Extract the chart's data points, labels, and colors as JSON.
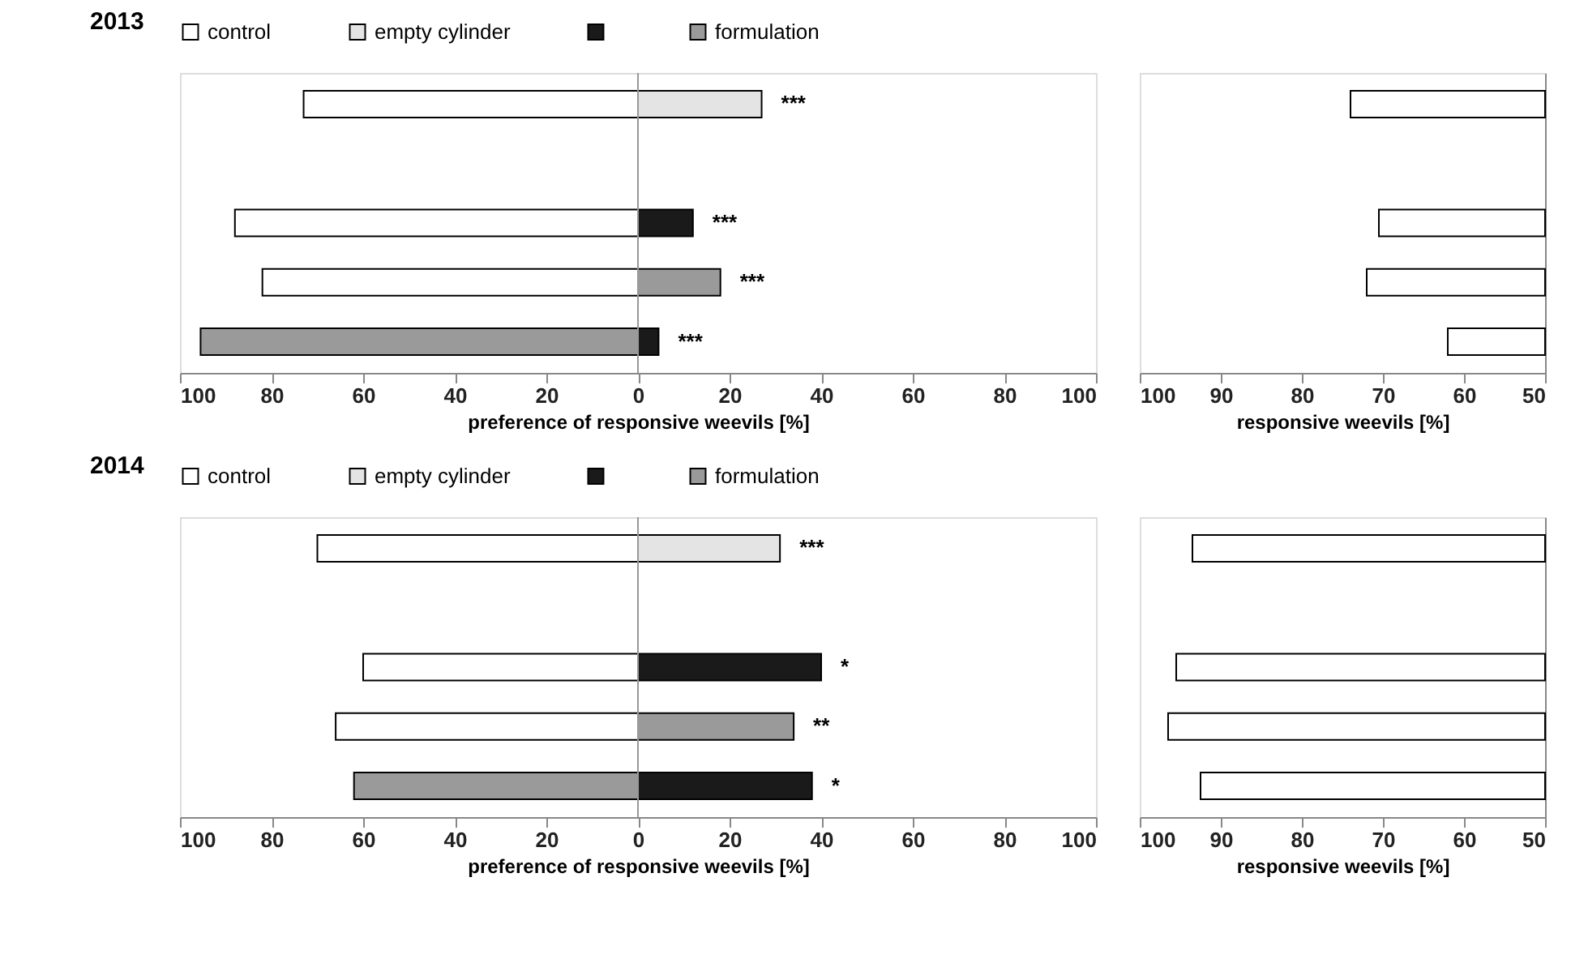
{
  "chart_data": [
    {
      "type": "bar",
      "orientation": "horizontal",
      "stacked": true,
      "title": "2013",
      "xlabel": "preference of responsive weevils [%]",
      "categories": [
        null,
        null,
        null,
        null,
        null
      ],
      "series": [
        {
          "name": "control",
          "color": "#ffffff",
          "values": [
            -73,
            null,
            -88,
            -82,
            null
          ]
        },
        {
          "name": "empty cylinder",
          "color": "#e4e4e4",
          "values": [
            27,
            null,
            null,
            null,
            null
          ]
        },
        {
          "color": "#1a1a1a",
          "values": [
            null,
            null,
            12,
            null,
            4.5
          ]
        },
        {
          "name": "formulation",
          "color": "#9a9a9a",
          "values": [
            null,
            null,
            null,
            18,
            -95.5
          ]
        }
      ],
      "xlim": [
        -100,
        100
      ],
      "xticks": [
        {
          "value": -100,
          "label": "100"
        },
        {
          "value": -80,
          "label": "80"
        },
        {
          "value": -60,
          "label": "60"
        },
        {
          "value": -40,
          "label": "40"
        },
        {
          "value": -20,
          "label": "20"
        },
        0,
        20,
        40,
        60,
        80,
        100
      ],
      "ref_lines": [
        {
          "axis": "x",
          "value": 0,
          "color": "#999999"
        }
      ],
      "annotations": [
        "***",
        "***",
        "***",
        "***"
      ],
      "legend": "top"
    },
    {
      "type": "bar",
      "orientation": "horizontal",
      "xlabel": "responsive weevils [%]",
      "categories": [
        null,
        null,
        null,
        null,
        null
      ],
      "series": [
        {
          "color": "#ffffff",
          "values": [
            74,
            null,
            70.5,
            72,
            62
          ]
        }
      ],
      "xlim": [
        100,
        50
      ],
      "xticks": [
        100,
        90,
        80,
        70,
        60,
        50
      ]
    },
    {
      "type": "bar",
      "orientation": "horizontal",
      "stacked": true,
      "title": "2014",
      "xlabel": "preference of responsive weevils [%]",
      "categories": [
        null,
        null,
        null,
        null,
        null
      ],
      "series": [
        {
          "name": "control",
          "color": "#ffffff",
          "values": [
            -70,
            null,
            -60,
            -66,
            null
          ]
        },
        {
          "name": "empty cylinder",
          "color": "#e4e4e4",
          "values": [
            31,
            null,
            null,
            null,
            null
          ]
        },
        {
          "color": "#1a1a1a",
          "values": [
            null,
            null,
            40,
            null,
            38
          ]
        },
        {
          "name": "formulation",
          "color": "#9a9a9a",
          "values": [
            null,
            null,
            null,
            34,
            -62
          ]
        }
      ],
      "xlim": [
        -100,
        100
      ],
      "xticks": [
        {
          "value": -100,
          "label": "100"
        },
        {
          "value": -80,
          "label": "80"
        },
        {
          "value": -60,
          "label": "60"
        },
        {
          "value": -40,
          "label": "40"
        },
        {
          "value": -20,
          "label": "20"
        },
        0,
        20,
        40,
        60,
        80,
        100
      ],
      "ref_lines": [
        {
          "axis": "x",
          "value": 0,
          "color": "#999999"
        }
      ],
      "annotations": [
        "***",
        "*",
        "**",
        "*"
      ],
      "legend": "top"
    },
    {
      "type": "bar",
      "orientation": "horizontal",
      "xlabel": "responsive weevils [%]",
      "categories": [
        null,
        null,
        null,
        null,
        null
      ],
      "series": [
        {
          "color": "#ffffff",
          "values": [
            93.5,
            null,
            95.5,
            96.5,
            92.5
          ]
        }
      ],
      "xlim": [
        100,
        50
      ],
      "xticks": [
        100,
        90,
        80,
        70,
        60,
        50
      ]
    }
  ]
}
